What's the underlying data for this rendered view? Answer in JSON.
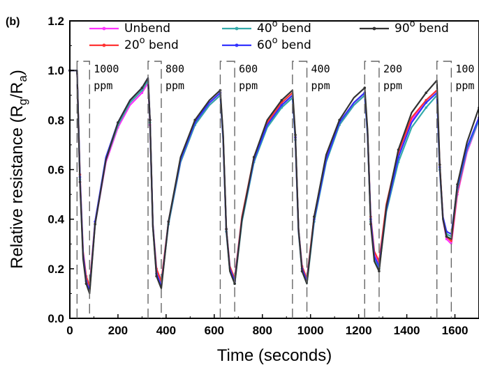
{
  "chart_data": {
    "type": "line",
    "panel_label": "(b)",
    "xlabel": "Time (seconds)",
    "ylabel": "Relative resistance (Rg/Ra)",
    "ylabel_parts": {
      "main": "Relative resistance (R",
      "sub1": "g",
      "mid": "/R",
      "sub2": "a",
      "end": ")"
    },
    "xlim": [
      0,
      1700
    ],
    "ylim": [
      0,
      1.2
    ],
    "xticks": [
      0,
      200,
      400,
      600,
      800,
      1000,
      1200,
      1400,
      1600
    ],
    "yticks": [
      "0.0",
      "0.2",
      "0.4",
      "0.6",
      "0.8",
      "1.0",
      "1.2"
    ],
    "legend_placement": "top",
    "series": [
      {
        "name": "Unbend",
        "color": "#ff33ff",
        "marker": "triangle",
        "points": [
          [
            0,
            1.0
          ],
          [
            30,
            1.0
          ],
          [
            42,
            0.55
          ],
          [
            55,
            0.26
          ],
          [
            68,
            0.16
          ],
          [
            82,
            0.12
          ],
          [
            105,
            0.38
          ],
          [
            150,
            0.63
          ],
          [
            200,
            0.77
          ],
          [
            250,
            0.86
          ],
          [
            300,
            0.91
          ],
          [
            325,
            0.95
          ],
          [
            333,
            0.78
          ],
          [
            345,
            0.37
          ],
          [
            360,
            0.19
          ],
          [
            380,
            0.14
          ],
          [
            410,
            0.38
          ],
          [
            460,
            0.63
          ],
          [
            520,
            0.78
          ],
          [
            580,
            0.86
          ],
          [
            625,
            0.9
          ],
          [
            637,
            0.72
          ],
          [
            650,
            0.35
          ],
          [
            665,
            0.2
          ],
          [
            685,
            0.15
          ],
          [
            715,
            0.4
          ],
          [
            765,
            0.64
          ],
          [
            820,
            0.78
          ],
          [
            880,
            0.86
          ],
          [
            925,
            0.9
          ],
          [
            937,
            0.72
          ],
          [
            950,
            0.35
          ],
          [
            965,
            0.2
          ],
          [
            985,
            0.15
          ],
          [
            1015,
            0.4
          ],
          [
            1065,
            0.64
          ],
          [
            1120,
            0.78
          ],
          [
            1180,
            0.86
          ],
          [
            1225,
            0.9
          ],
          [
            1237,
            0.74
          ],
          [
            1250,
            0.4
          ],
          [
            1265,
            0.26
          ],
          [
            1285,
            0.22
          ],
          [
            1315,
            0.45
          ],
          [
            1365,
            0.66
          ],
          [
            1420,
            0.8
          ],
          [
            1480,
            0.88
          ],
          [
            1525,
            0.92
          ],
          [
            1537,
            0.6
          ],
          [
            1550,
            0.4
          ],
          [
            1565,
            0.32
          ],
          [
            1585,
            0.3
          ],
          [
            1610,
            0.5
          ],
          [
            1650,
            0.67
          ],
          [
            1700,
            0.8
          ]
        ]
      },
      {
        "name": "20° bend",
        "color": "#ff3333",
        "marker": "triangle",
        "points": [
          [
            0,
            1.0
          ],
          [
            30,
            1.0
          ],
          [
            42,
            0.58
          ],
          [
            55,
            0.27
          ],
          [
            68,
            0.17
          ],
          [
            82,
            0.13
          ],
          [
            105,
            0.39
          ],
          [
            150,
            0.64
          ],
          [
            200,
            0.78
          ],
          [
            250,
            0.87
          ],
          [
            300,
            0.92
          ],
          [
            325,
            0.96
          ],
          [
            333,
            0.8
          ],
          [
            345,
            0.38
          ],
          [
            360,
            0.2
          ],
          [
            380,
            0.15
          ],
          [
            410,
            0.39
          ],
          [
            460,
            0.64
          ],
          [
            520,
            0.79
          ],
          [
            580,
            0.87
          ],
          [
            625,
            0.91
          ],
          [
            637,
            0.73
          ],
          [
            650,
            0.36
          ],
          [
            665,
            0.21
          ],
          [
            685,
            0.16
          ],
          [
            715,
            0.41
          ],
          [
            765,
            0.65
          ],
          [
            820,
            0.79
          ],
          [
            880,
            0.87
          ],
          [
            925,
            0.91
          ],
          [
            937,
            0.73
          ],
          [
            950,
            0.36
          ],
          [
            965,
            0.21
          ],
          [
            985,
            0.16
          ],
          [
            1015,
            0.41
          ],
          [
            1065,
            0.65
          ],
          [
            1120,
            0.79
          ],
          [
            1180,
            0.87
          ],
          [
            1225,
            0.91
          ],
          [
            1237,
            0.75
          ],
          [
            1250,
            0.41
          ],
          [
            1265,
            0.27
          ],
          [
            1285,
            0.23
          ],
          [
            1315,
            0.46
          ],
          [
            1365,
            0.67
          ],
          [
            1420,
            0.81
          ],
          [
            1480,
            0.88
          ],
          [
            1525,
            0.92
          ],
          [
            1537,
            0.62
          ],
          [
            1550,
            0.41
          ],
          [
            1565,
            0.33
          ],
          [
            1585,
            0.31
          ],
          [
            1610,
            0.51
          ],
          [
            1650,
            0.68
          ],
          [
            1700,
            0.81
          ]
        ]
      },
      {
        "name": "40° bend",
        "color": "#33aaaa",
        "marker": "triangle",
        "points": [
          [
            0,
            1.0
          ],
          [
            30,
            1.0
          ],
          [
            42,
            0.56
          ],
          [
            55,
            0.25
          ],
          [
            68,
            0.15
          ],
          [
            82,
            0.11
          ],
          [
            105,
            0.38
          ],
          [
            150,
            0.64
          ],
          [
            200,
            0.78
          ],
          [
            250,
            0.87
          ],
          [
            300,
            0.92
          ],
          [
            325,
            0.96
          ],
          [
            333,
            0.79
          ],
          [
            345,
            0.37
          ],
          [
            360,
            0.18
          ],
          [
            380,
            0.13
          ],
          [
            410,
            0.38
          ],
          [
            460,
            0.63
          ],
          [
            520,
            0.78
          ],
          [
            580,
            0.86
          ],
          [
            625,
            0.9
          ],
          [
            637,
            0.72
          ],
          [
            650,
            0.35
          ],
          [
            665,
            0.19
          ],
          [
            685,
            0.14
          ],
          [
            715,
            0.39
          ],
          [
            765,
            0.63
          ],
          [
            820,
            0.77
          ],
          [
            880,
            0.85
          ],
          [
            925,
            0.89
          ],
          [
            937,
            0.72
          ],
          [
            950,
            0.35
          ],
          [
            965,
            0.19
          ],
          [
            985,
            0.14
          ],
          [
            1015,
            0.39
          ],
          [
            1065,
            0.63
          ],
          [
            1120,
            0.78
          ],
          [
            1180,
            0.86
          ],
          [
            1225,
            0.9
          ],
          [
            1237,
            0.74
          ],
          [
            1250,
            0.39
          ],
          [
            1265,
            0.24
          ],
          [
            1285,
            0.2
          ],
          [
            1315,
            0.43
          ],
          [
            1365,
            0.63
          ],
          [
            1420,
            0.77
          ],
          [
            1480,
            0.85
          ],
          [
            1525,
            0.9
          ],
          [
            1537,
            0.6
          ],
          [
            1550,
            0.4
          ],
          [
            1565,
            0.34
          ],
          [
            1585,
            0.33
          ],
          [
            1610,
            0.52
          ],
          [
            1650,
            0.68
          ],
          [
            1700,
            0.8
          ]
        ]
      },
      {
        "name": "60° bend",
        "color": "#3333ff",
        "marker": "triangle",
        "points": [
          [
            0,
            1.0
          ],
          [
            30,
            1.0
          ],
          [
            42,
            0.57
          ],
          [
            55,
            0.26
          ],
          [
            68,
            0.15
          ],
          [
            82,
            0.11
          ],
          [
            105,
            0.39
          ],
          [
            150,
            0.65
          ],
          [
            200,
            0.79
          ],
          [
            250,
            0.88
          ],
          [
            300,
            0.93
          ],
          [
            325,
            0.97
          ],
          [
            333,
            0.8
          ],
          [
            345,
            0.38
          ],
          [
            360,
            0.18
          ],
          [
            380,
            0.13
          ],
          [
            410,
            0.39
          ],
          [
            460,
            0.64
          ],
          [
            520,
            0.79
          ],
          [
            580,
            0.87
          ],
          [
            625,
            0.91
          ],
          [
            637,
            0.73
          ],
          [
            650,
            0.36
          ],
          [
            665,
            0.2
          ],
          [
            685,
            0.15
          ],
          [
            715,
            0.4
          ],
          [
            765,
            0.64
          ],
          [
            820,
            0.78
          ],
          [
            880,
            0.86
          ],
          [
            925,
            0.9
          ],
          [
            937,
            0.73
          ],
          [
            950,
            0.36
          ],
          [
            965,
            0.2
          ],
          [
            985,
            0.15
          ],
          [
            1015,
            0.4
          ],
          [
            1065,
            0.64
          ],
          [
            1120,
            0.79
          ],
          [
            1180,
            0.87
          ],
          [
            1225,
            0.91
          ],
          [
            1237,
            0.75
          ],
          [
            1250,
            0.4
          ],
          [
            1265,
            0.25
          ],
          [
            1285,
            0.21
          ],
          [
            1315,
            0.44
          ],
          [
            1365,
            0.65
          ],
          [
            1420,
            0.79
          ],
          [
            1480,
            0.87
          ],
          [
            1525,
            0.91
          ],
          [
            1537,
            0.61
          ],
          [
            1550,
            0.41
          ],
          [
            1565,
            0.35
          ],
          [
            1585,
            0.34
          ],
          [
            1610,
            0.53
          ],
          [
            1650,
            0.69
          ],
          [
            1700,
            0.81
          ]
        ]
      },
      {
        "name": "90° bend",
        "color": "#333333",
        "marker": "circle",
        "points": [
          [
            0,
            1.0
          ],
          [
            30,
            1.0
          ],
          [
            42,
            0.55
          ],
          [
            55,
            0.24
          ],
          [
            68,
            0.14
          ],
          [
            82,
            0.1
          ],
          [
            105,
            0.38
          ],
          [
            150,
            0.64
          ],
          [
            200,
            0.79
          ],
          [
            250,
            0.88
          ],
          [
            300,
            0.93
          ],
          [
            325,
            0.97
          ],
          [
            333,
            0.8
          ],
          [
            345,
            0.37
          ],
          [
            360,
            0.17
          ],
          [
            380,
            0.12
          ],
          [
            410,
            0.39
          ],
          [
            460,
            0.65
          ],
          [
            520,
            0.8
          ],
          [
            580,
            0.88
          ],
          [
            625,
            0.92
          ],
          [
            637,
            0.74
          ],
          [
            650,
            0.36
          ],
          [
            665,
            0.19
          ],
          [
            685,
            0.14
          ],
          [
            715,
            0.4
          ],
          [
            765,
            0.65
          ],
          [
            820,
            0.8
          ],
          [
            880,
            0.88
          ],
          [
            925,
            0.92
          ],
          [
            937,
            0.74
          ],
          [
            950,
            0.36
          ],
          [
            965,
            0.19
          ],
          [
            985,
            0.14
          ],
          [
            1015,
            0.41
          ],
          [
            1065,
            0.66
          ],
          [
            1120,
            0.8
          ],
          [
            1180,
            0.89
          ],
          [
            1225,
            0.93
          ],
          [
            1237,
            0.76
          ],
          [
            1250,
            0.38
          ],
          [
            1265,
            0.23
          ],
          [
            1285,
            0.19
          ],
          [
            1315,
            0.45
          ],
          [
            1365,
            0.68
          ],
          [
            1420,
            0.83
          ],
          [
            1480,
            0.91
          ],
          [
            1525,
            0.96
          ],
          [
            1537,
            0.62
          ],
          [
            1550,
            0.4
          ],
          [
            1565,
            0.33
          ],
          [
            1585,
            0.32
          ],
          [
            1610,
            0.54
          ],
          [
            1650,
            0.71
          ],
          [
            1700,
            0.85
          ]
        ]
      }
    ],
    "exposure_windows": [
      {
        "label_top": "1000",
        "label_bottom": "ppm",
        "x_start": 30,
        "x_end": 82
      },
      {
        "label_top": "800",
        "label_bottom": "ppm",
        "x_start": 325,
        "x_end": 380
      },
      {
        "label_top": "600",
        "label_bottom": "ppm",
        "x_start": 625,
        "x_end": 685
      },
      {
        "label_top": "400",
        "label_bottom": "ppm",
        "x_start": 925,
        "x_end": 985
      },
      {
        "label_top": "200",
        "label_bottom": "ppm",
        "x_start": 1225,
        "x_end": 1285
      },
      {
        "label_top": "100",
        "label_bottom": "ppm",
        "x_start": 1525,
        "x_end": 1585
      }
    ],
    "legend": [
      {
        "text": "Unbend",
        "deg": "",
        "suffix": "",
        "color": "#ff33ff",
        "row": 1,
        "col": 1
      },
      {
        "text": "40",
        "deg": "o",
        "suffix": " bend",
        "color": "#33aaaa",
        "row": 1,
        "col": 2
      },
      {
        "text": "90",
        "deg": "o",
        "suffix": " bend",
        "color": "#333333",
        "row": 1,
        "col": 3
      },
      {
        "text": "20",
        "deg": "o",
        "suffix": " bend",
        "color": "#ff3333",
        "row": 2,
        "col": 1
      },
      {
        "text": "60",
        "deg": "o",
        "suffix": " bend",
        "color": "#3333ff",
        "row": 2,
        "col": 2
      }
    ],
    "grid": false
  }
}
